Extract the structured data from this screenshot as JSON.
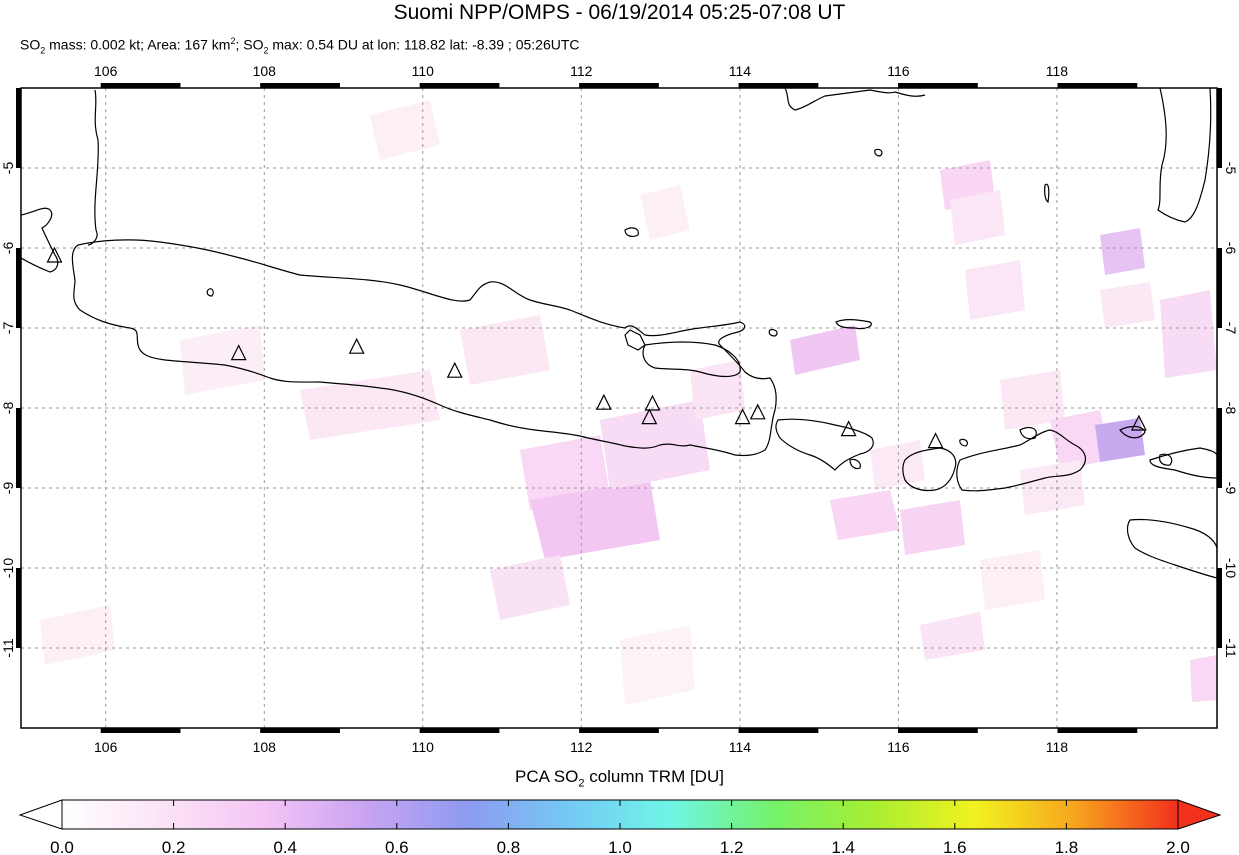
{
  "title": "Suomi NPP/OMPS - 06/19/2014 05:25-07:08 UT",
  "subtitle": {
    "p1": "SO",
    "s1": "2",
    "p2": " mass: 0.002 kt; Area: 167 km",
    "sup": "2",
    "p3": "; SO",
    "s2": "2",
    "p4": " max: 0.54 DU at lon: 118.82 lat: -8.39 ; 05:26UTC"
  },
  "map": {
    "lon_range": [
      105,
      120
    ],
    "lat_range": [
      -12,
      -4
    ],
    "lon_ticks": [
      "106",
      "108",
      "110",
      "112",
      "114",
      "116",
      "118"
    ],
    "lat_ticks": [
      "-5",
      "-6",
      "-7",
      "-8",
      "-9",
      "-10",
      "-11"
    ],
    "volcano_icon": "triangle-icon",
    "volcanoes": [
      {
        "lon": 105.42,
        "lat": -6.1
      },
      {
        "lon": 107.73,
        "lat": -7.32
      },
      {
        "lon": 109.21,
        "lat": -7.24
      },
      {
        "lon": 110.44,
        "lat": -7.54
      },
      {
        "lon": 112.31,
        "lat": -7.94
      },
      {
        "lon": 112.92,
        "lat": -7.95
      },
      {
        "lon": 112.88,
        "lat": -8.12
      },
      {
        "lon": 114.05,
        "lat": -8.12
      },
      {
        "lon": 114.24,
        "lat": -8.06
      },
      {
        "lon": 115.38,
        "lat": -8.27
      },
      {
        "lon": 116.47,
        "lat": -8.42
      },
      {
        "lon": 119.02,
        "lat": -8.2
      }
    ]
  },
  "colorbar": {
    "title_p1": "PCA SO",
    "title_sub": "2",
    "title_p2": " column TRM [DU]",
    "ticks": [
      "0.0",
      "0.2",
      "0.4",
      "0.6",
      "0.8",
      "1.0",
      "1.2",
      "1.4",
      "1.6",
      "1.8",
      "2.0"
    ],
    "colors": [
      "#ffffff",
      "#fbe3f6",
      "#f4c4f5",
      "#c9a3f3",
      "#8d9bf0",
      "#74c9f5",
      "#6ff5e6",
      "#74f26a",
      "#a8ee31",
      "#f2f21f",
      "#f7a31f",
      "#f2301c"
    ]
  }
}
